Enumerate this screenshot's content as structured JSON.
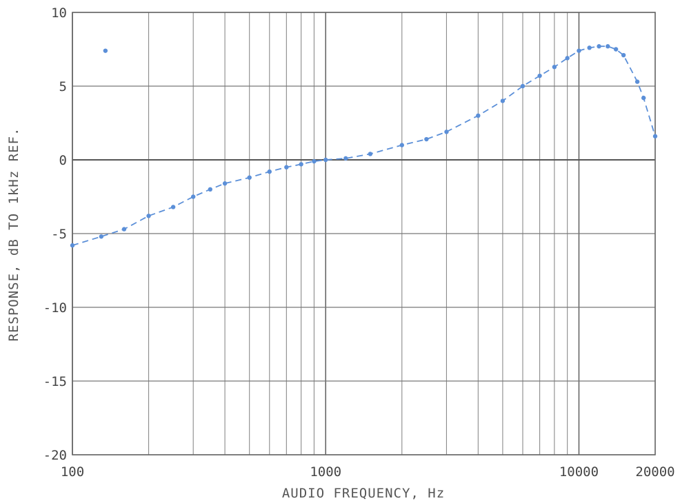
{
  "chart_data": {
    "type": "line",
    "title": "",
    "xlabel": "AUDIO FREQUENCY, Hz",
    "ylabel": "RESPONSE, dB TO 1kHz REF.",
    "xscale": "log",
    "xlim": [
      100,
      20000
    ],
    "ylim": [
      -20,
      10
    ],
    "grid": true,
    "x_tick_labels": [
      "100",
      "1000",
      "10000",
      "20000"
    ],
    "x_ticks": [
      100,
      1000,
      10000,
      20000
    ],
    "y_ticks": [
      10,
      5,
      0,
      -5,
      -10,
      -15,
      -20
    ],
    "y_tick_labels": [
      "10",
      "5",
      "0",
      "-5",
      "-10",
      "-15",
      "-20"
    ],
    "series": [
      {
        "color": "#5b8fd8",
        "style": "dashed-dotted",
        "points": [
          {
            "x": 100,
            "y": -5.8
          },
          {
            "x": 130,
            "y": -5.2
          },
          {
            "x": 160,
            "y": -4.7
          },
          {
            "x": 200,
            "y": -3.8
          },
          {
            "x": 250,
            "y": -3.2
          },
          {
            "x": 300,
            "y": -2.5
          },
          {
            "x": 350,
            "y": -2.0
          },
          {
            "x": 400,
            "y": -1.6
          },
          {
            "x": 500,
            "y": -1.2
          },
          {
            "x": 600,
            "y": -0.8
          },
          {
            "x": 700,
            "y": -0.5
          },
          {
            "x": 800,
            "y": -0.3
          },
          {
            "x": 900,
            "y": -0.1
          },
          {
            "x": 1000,
            "y": 0.0
          },
          {
            "x": 1200,
            "y": 0.1
          },
          {
            "x": 1500,
            "y": 0.4
          },
          {
            "x": 2000,
            "y": 1.0
          },
          {
            "x": 2500,
            "y": 1.4
          },
          {
            "x": 3000,
            "y": 1.9
          },
          {
            "x": 4000,
            "y": 3.0
          },
          {
            "x": 5000,
            "y": 4.0
          },
          {
            "x": 6000,
            "y": 5.0
          },
          {
            "x": 7000,
            "y": 5.7
          },
          {
            "x": 8000,
            "y": 6.3
          },
          {
            "x": 9000,
            "y": 6.9
          },
          {
            "x": 10000,
            "y": 7.4
          },
          {
            "x": 11000,
            "y": 7.6
          },
          {
            "x": 12000,
            "y": 7.7
          },
          {
            "x": 13000,
            "y": 7.7
          },
          {
            "x": 14000,
            "y": 7.5
          },
          {
            "x": 15000,
            "y": 7.1
          },
          {
            "x": 17000,
            "y": 5.3
          },
          {
            "x": 18000,
            "y": 4.2
          },
          {
            "x": 20000,
            "y": 1.6
          }
        ]
      }
    ],
    "stray_points": [
      {
        "x": 135,
        "y": 7.4
      }
    ]
  }
}
